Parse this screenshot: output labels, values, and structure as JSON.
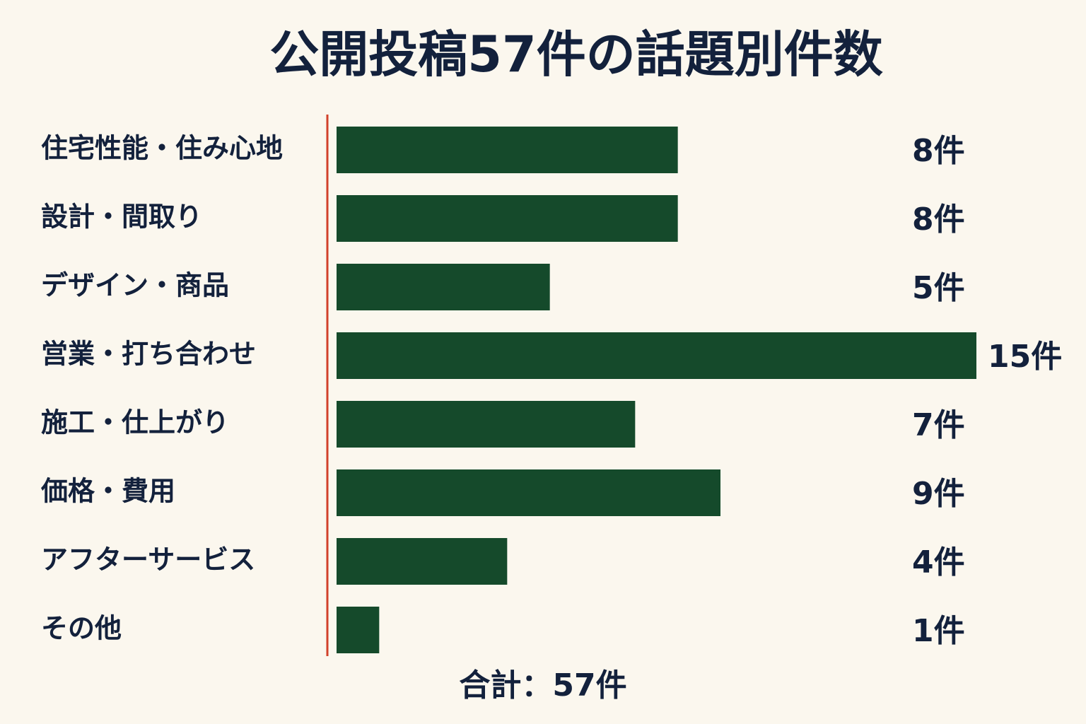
{
  "chart_data": {
    "type": "bar",
    "orientation": "horizontal",
    "title": "公開投稿57件の話題別件数",
    "categories": [
      "住宅性能・住み心地",
      "設計・間取り",
      "デザイン・商品",
      "営業・打ち合わせ",
      "施工・仕上がり",
      "価格・費用",
      "アフターサービス",
      "その他"
    ],
    "values": [
      8,
      8,
      5,
      15,
      7,
      9,
      4,
      1
    ],
    "value_labels": [
      "8件",
      "8件",
      "5件",
      "15件",
      "7件",
      "9件",
      "4件",
      "1件"
    ],
    "color": "#154a2b",
    "footer": "合計：57件"
  }
}
